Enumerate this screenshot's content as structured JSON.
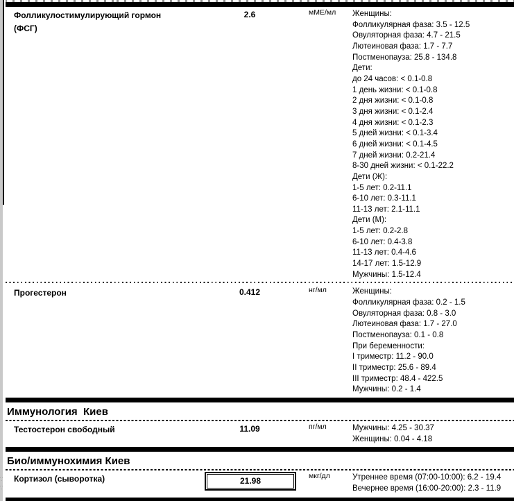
{
  "colors": {
    "text": "#000000",
    "divider_bar": "#000000",
    "left_strip": "#c9c9c9",
    "page_background": "#ffffff"
  },
  "artifacts": {
    "left_margin_marks": "·: ·:"
  },
  "report": {
    "sections": [
      {
        "header": null,
        "rows": [
          {
            "name_lines": [
              "Фолликулостимулирующий гормон",
              "(ФСГ)"
            ],
            "value": "2.6",
            "unit": "мМЕ/мл",
            "boxed": false,
            "references": [
              "Женщины:",
              "Фолликулярная фаза: 3.5 - 12.5",
              "Овуляторная фаза: 4.7 - 21.5",
              "Лютеиновая фаза: 1.7 - 7.7",
              "Постменопауза: 25.8 - 134.8",
              "Дети:",
              "до 24 часов: < 0.1-0.8",
              "1 день жизни: < 0.1-0.8",
              "2 дня жизни: < 0.1-0.8",
              "3 дня жизни: < 0.1-2.4",
              "4 дня жизни: < 0.1-2.3",
              "5 дней жизни: < 0.1-3.4",
              "6 дней жизни: < 0.1-4.5",
              "7 дней жизни: 0.2-21.4",
              "8-30 дней жизни: < 0.1-22.2",
              "Дети (Ж):",
              "1-5 лет: 0.2-11.1",
              "6-10 лет: 0.3-11.1",
              "11-13 лет: 2.1-11.1",
              "Дети (М):",
              "1-5 лет: 0.2-2.8",
              "6-10 лет: 0.4-3.8",
              "11-13 лет: 0.4-4.6",
              "14-17 лет: 1.5-12.9",
              "Мужчины: 1.5-12.4"
            ]
          },
          {
            "name_lines": [
              "Прогестерон"
            ],
            "value": "0.412",
            "unit": "нг/мл",
            "boxed": false,
            "references": [
              "Женщины:",
              "Фолликулярная фаза: 0.2 - 1.5",
              "Овуляторная фаза: 0.8 - 3.0",
              "Лютеиновая фаза: 1.7 - 27.0",
              "Постменопауза: 0.1 - 0.8",
              "При беременности:",
              "I триместр: 11.2 - 90.0",
              "II триместр: 25.6 - 89.4",
              "III триместр: 48.4 - 422.5",
              "Мужчины: 0.2 - 1.4"
            ]
          }
        ]
      },
      {
        "header": "Иммунология  Киев",
        "rows": [
          {
            "name_lines": [
              "Тестостерон свободный"
            ],
            "value": "11.09",
            "unit": "пг/мл",
            "boxed": false,
            "references": [
              "Мужчины: 4.25 - 30.37",
              "Женщины: 0.04 - 4.18"
            ]
          }
        ]
      },
      {
        "header": "Био/иммунохимия Киев",
        "rows": [
          {
            "name_lines": [
              "Кортизол (сыворотка)"
            ],
            "value": "21.98",
            "unit": "мкг/дл",
            "boxed": true,
            "references": [
              "Утреннее время (07:00-10:00): 6.2 - 19.4",
              "Вечернее время (16:00-20:00): 2.3 - 11.9"
            ]
          }
        ]
      }
    ]
  }
}
